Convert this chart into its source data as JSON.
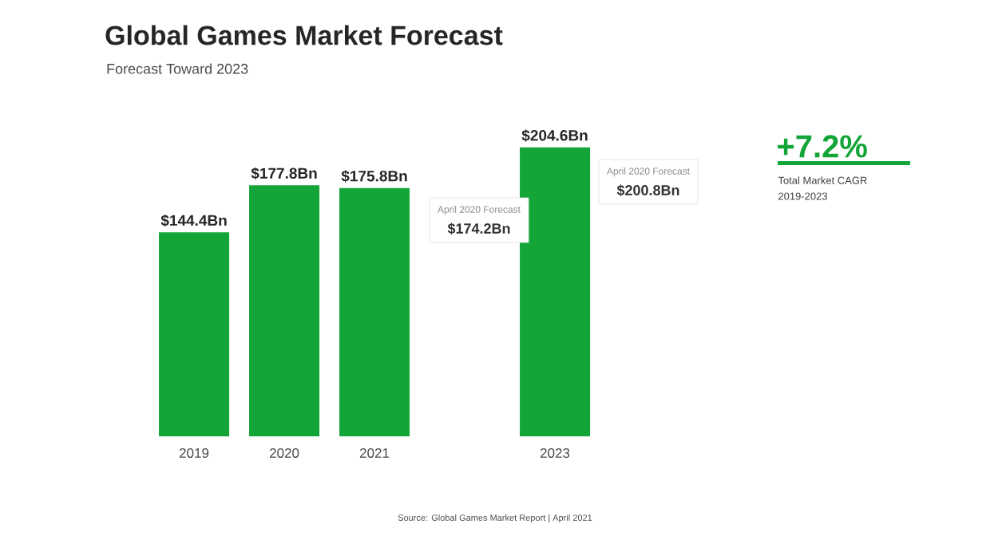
{
  "chart_data": {
    "type": "bar",
    "title": "Global Games Market Forecast",
    "subtitle": "Forecast Toward 2023",
    "categories": [
      "2019",
      "2020",
      "2021",
      null,
      "2023"
    ],
    "values": [
      144.4,
      177.8,
      175.8,
      null,
      204.6
    ],
    "value_labels": [
      "$144.4Bn",
      "$177.8Bn",
      "$175.8Bn",
      null,
      "$204.6Bn"
    ],
    "color": "#13a538",
    "annotations": [
      "April 2020 Forecast",
      "$174.2Bn",
      "April 2020 Forecast",
      "$200.8Bn",
      "+7.2%",
      "Total Market CAGR",
      "2019-2023",
      "Source: Global Games Market Report | April 2021"
    ]
  }
}
